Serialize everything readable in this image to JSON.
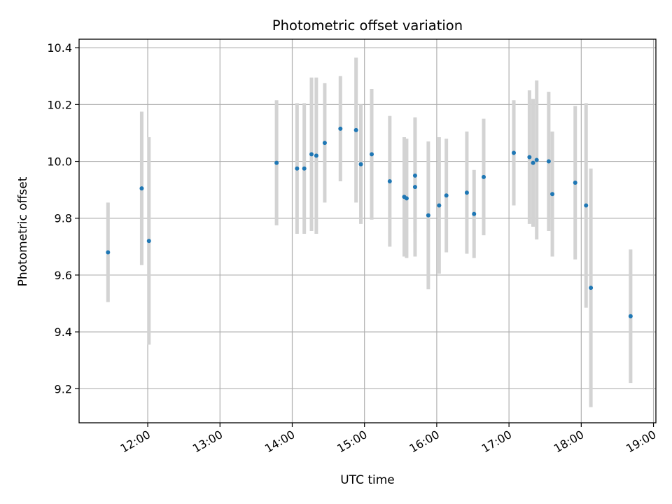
{
  "chart_data": {
    "type": "scatter",
    "title": "Photometric offset variation",
    "xlabel": "UTC time",
    "ylabel": "Photometric offset",
    "grid": true,
    "legend": "none",
    "xlim": [
      "11:03",
      "19:02"
    ],
    "ylim": [
      9.08,
      10.43
    ],
    "x_ticks": [
      "12:00",
      "13:00",
      "14:00",
      "15:00",
      "16:00",
      "17:00",
      "18:00",
      "19:00"
    ],
    "y_ticks": [
      "9.2",
      "9.4",
      "9.6",
      "9.8",
      "10.0",
      "10.2",
      "10.4"
    ],
    "colors": {
      "point": "#1f77b4",
      "errorbar": "#d3d3d3",
      "grid": "#b0b0b0"
    },
    "series": [
      {
        "points": [
          {
            "x": "11:27",
            "y": 9.68,
            "err": 0.175
          },
          {
            "x": "11:55",
            "y": 9.905,
            "err": 0.27
          },
          {
            "x": "12:01",
            "y": 9.72,
            "err": 0.365
          },
          {
            "x": "13:47",
            "y": 9.995,
            "err": 0.22
          },
          {
            "x": "14:04",
            "y": 9.975,
            "err": 0.23
          },
          {
            "x": "14:10",
            "y": 9.975,
            "err": 0.23
          },
          {
            "x": "14:16",
            "y": 10.025,
            "err": 0.27
          },
          {
            "x": "14:20",
            "y": 10.02,
            "err": 0.275
          },
          {
            "x": "14:27",
            "y": 10.065,
            "err": 0.21
          },
          {
            "x": "14:40",
            "y": 10.115,
            "err": 0.185
          },
          {
            "x": "14:53",
            "y": 10.11,
            "err": 0.255
          },
          {
            "x": "14:57",
            "y": 9.99,
            "err": 0.21
          },
          {
            "x": "15:06",
            "y": 10.025,
            "err": 0.23
          },
          {
            "x": "15:21",
            "y": 9.93,
            "err": 0.23
          },
          {
            "x": "15:33",
            "y": 9.875,
            "err": 0.21
          },
          {
            "x": "15:35",
            "y": 9.87,
            "err": 0.21
          },
          {
            "x": "15:42",
            "y": 9.91,
            "err": 0.245
          },
          {
            "x": "15:42",
            "y": 9.95,
            "err": 0.2
          },
          {
            "x": "15:53",
            "y": 9.81,
            "err": 0.26
          },
          {
            "x": "16:02",
            "y": 9.845,
            "err": 0.24
          },
          {
            "x": "16:08",
            "y": 9.88,
            "err": 0.2
          },
          {
            "x": "16:25",
            "y": 9.89,
            "err": 0.215
          },
          {
            "x": "16:31",
            "y": 9.815,
            "err": 0.155
          },
          {
            "x": "16:39",
            "y": 9.945,
            "err": 0.205
          },
          {
            "x": "17:04",
            "y": 10.03,
            "err": 0.185
          },
          {
            "x": "17:17",
            "y": 10.015,
            "err": 0.235
          },
          {
            "x": "17:20",
            "y": 9.995,
            "err": 0.225
          },
          {
            "x": "17:23",
            "y": 10.005,
            "err": 0.28
          },
          {
            "x": "17:33",
            "y": 10.0,
            "err": 0.245
          },
          {
            "x": "17:36",
            "y": 9.885,
            "err": 0.22
          },
          {
            "x": "17:55",
            "y": 9.925,
            "err": 0.27
          },
          {
            "x": "18:04",
            "y": 9.845,
            "err": 0.36
          },
          {
            "x": "18:08",
            "y": 9.555,
            "err": 0.42
          },
          {
            "x": "18:41",
            "y": 9.455,
            "err": 0.235
          }
        ]
      }
    ]
  }
}
